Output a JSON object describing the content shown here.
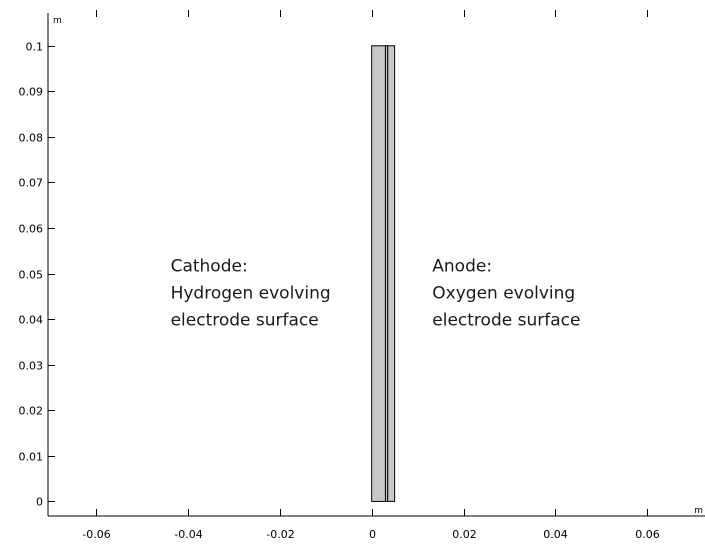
{
  "chart_data": {
    "type": "diagram",
    "x_unit": "m",
    "y_unit": "m",
    "xlim": [
      -0.0705,
      0.0726
    ],
    "ylim": [
      -0.0032,
      0.1072
    ],
    "x_ticks": [
      {
        "value": -0.06,
        "label": "-0.06"
      },
      {
        "value": -0.04,
        "label": "-0.04"
      },
      {
        "value": -0.02,
        "label": "-0.02"
      },
      {
        "value": 0,
        "label": "0"
      },
      {
        "value": 0.02,
        "label": "0.02"
      },
      {
        "value": 0.04,
        "label": "0.04"
      },
      {
        "value": 0.06,
        "label": "0.06"
      }
    ],
    "y_ticks": [
      {
        "value": 0,
        "label": "0"
      },
      {
        "value": 0.01,
        "label": "0.01"
      },
      {
        "value": 0.02,
        "label": "0.02"
      },
      {
        "value": 0.03,
        "label": "0.03"
      },
      {
        "value": 0.04,
        "label": "0.04"
      },
      {
        "value": 0.05,
        "label": "0.05"
      },
      {
        "value": 0.06,
        "label": "0.06"
      },
      {
        "value": 0.07,
        "label": "0.07"
      },
      {
        "value": 0.08,
        "label": "0.08"
      },
      {
        "value": 0.09,
        "label": "0.09"
      },
      {
        "value": 0.1,
        "label": "0.1"
      }
    ],
    "geometry": {
      "fill_color": "#c8c8c8",
      "stroke_color": "#000000",
      "domains": [
        {
          "x0": 0.0,
          "x1": 0.003,
          "y0": 0.0,
          "y1": 0.1
        },
        {
          "x0": 0.003,
          "x1": 0.0035,
          "y0": 0.0,
          "y1": 0.1
        },
        {
          "x0": 0.0035,
          "x1": 0.005,
          "y0": 0.0,
          "y1": 0.1
        }
      ]
    },
    "annotations": [
      {
        "x": -0.0438,
        "y": 0.0505,
        "lines": [
          "Cathode:",
          "Hydrogen evolving",
          "electrode surface"
        ]
      },
      {
        "x": 0.0132,
        "y": 0.0505,
        "lines": [
          "Anode:",
          "Oxygen evolving",
          "electrode surface"
        ]
      }
    ]
  }
}
